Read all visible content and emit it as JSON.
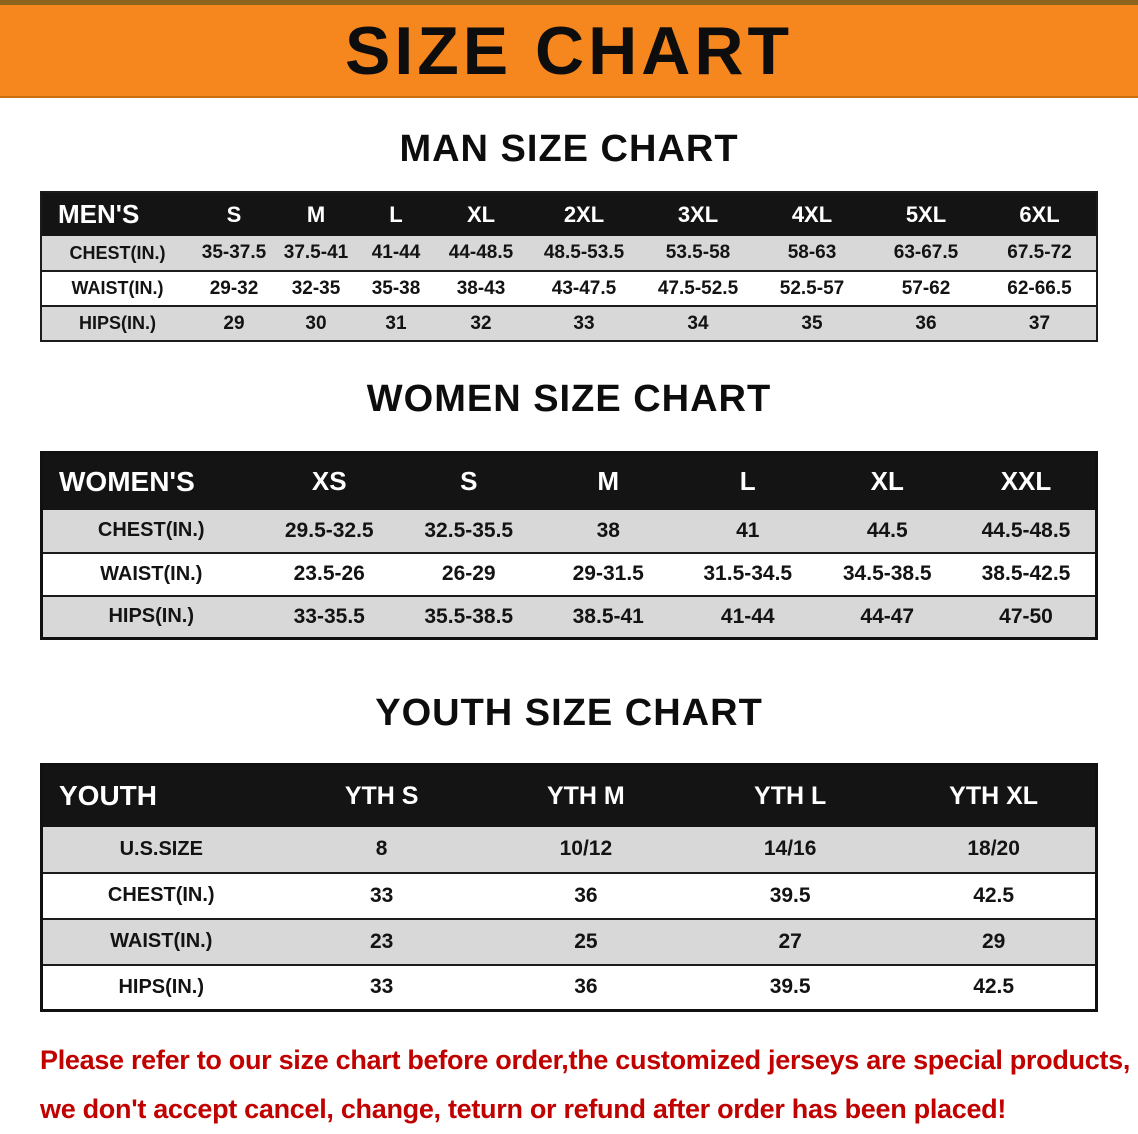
{
  "banner": {
    "title": "SIZE CHART"
  },
  "sections": [
    {
      "heading": "MAN SIZE CHART",
      "table": {
        "header": [
          "MEN'S",
          "S",
          "M",
          "L",
          "XL",
          "2XL",
          "3XL",
          "4XL",
          "5XL",
          "6XL"
        ],
        "rows": [
          [
            "CHEST(IN.)",
            "35-37.5",
            "37.5-41",
            "41-44",
            "44-48.5",
            "48.5-53.5",
            "53.5-58",
            "58-63",
            "63-67.5",
            "67.5-72"
          ],
          [
            "WAIST(IN.)",
            "29-32",
            "32-35",
            "35-38",
            "38-43",
            "43-47.5",
            "47.5-52.5",
            "52.5-57",
            "57-62",
            "62-66.5"
          ],
          [
            "HIPS(IN.)",
            "29",
            "30",
            "31",
            "32",
            "33",
            "34",
            "35",
            "36",
            "37"
          ]
        ]
      }
    },
    {
      "heading": "WOMEN SIZE CHART",
      "table": {
        "header": [
          "WOMEN'S",
          "XS",
          "S",
          "M",
          "L",
          "XL",
          "XXL"
        ],
        "rows": [
          [
            "CHEST(IN.)",
            "29.5-32.5",
            "32.5-35.5",
            "38",
            "41",
            "44.5",
            "44.5-48.5"
          ],
          [
            "WAIST(IN.)",
            "23.5-26",
            "26-29",
            "29-31.5",
            "31.5-34.5",
            "34.5-38.5",
            "38.5-42.5"
          ],
          [
            "HIPS(IN.)",
            "33-35.5",
            "35.5-38.5",
            "38.5-41",
            "41-44",
            "44-47",
            "47-50"
          ]
        ]
      }
    },
    {
      "heading": "YOUTH SIZE CHART",
      "table": {
        "header": [
          "YOUTH",
          "YTH S",
          "YTH M",
          "YTH L",
          "YTH XL"
        ],
        "rows": [
          [
            "U.S.SIZE",
            "8",
            "10/12",
            "14/16",
            "18/20"
          ],
          [
            "CHEST(IN.)",
            "33",
            "36",
            "39.5",
            "42.5"
          ],
          [
            "WAIST(IN.)",
            "23",
            "25",
            "27",
            "29"
          ],
          [
            "HIPS(IN.)",
            "33",
            "36",
            "39.5",
            "42.5"
          ]
        ]
      }
    }
  ],
  "disclaimer": {
    "line1": "Please refer to our size chart before order,the customized jerseys are special products,",
    "line2": "we don't accept cancel, change, teturn or refund after order has been placed!"
  },
  "colors": {
    "banner_orange": "#F6861E",
    "header_black": "#141414",
    "row_gray": "#D8D8D8",
    "disclaimer_red": "#C10000"
  }
}
